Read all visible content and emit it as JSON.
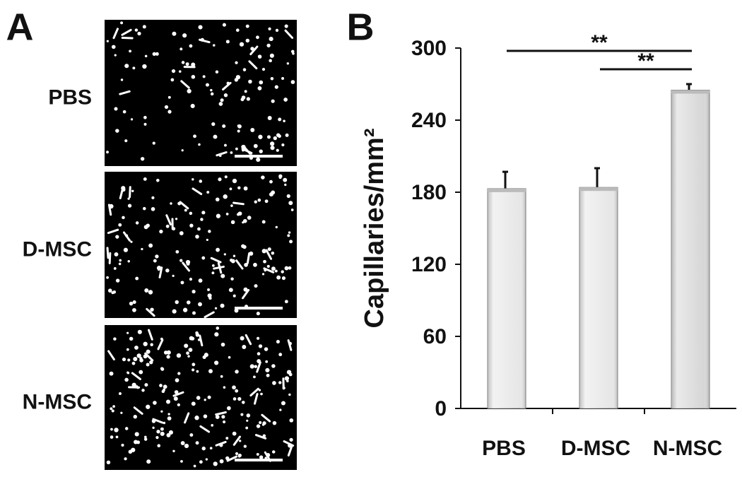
{
  "panel_labels": [
    "A",
    "B"
  ],
  "image_labels": [
    "PBS",
    "D-MSC",
    "N-MSC"
  ],
  "chart_data": {
    "type": "bar",
    "y_label": "Capillaries/mm²",
    "categories": [
      "PBS",
      "D-MSC",
      "N-MSC"
    ],
    "values": [
      183,
      184,
      265
    ],
    "errors": [
      14,
      16,
      5
    ],
    "colors": [
      "#e6e6e6",
      "#e6e6e6",
      "#d6d6d6"
    ],
    "ylim": [
      0,
      300
    ],
    "yticks": [
      0,
      60,
      120,
      180,
      240,
      300
    ],
    "annotations": [
      {
        "text": "**",
        "from": 0,
        "to": 2
      },
      {
        "text": "**",
        "from": 1,
        "to": 2
      }
    ]
  }
}
